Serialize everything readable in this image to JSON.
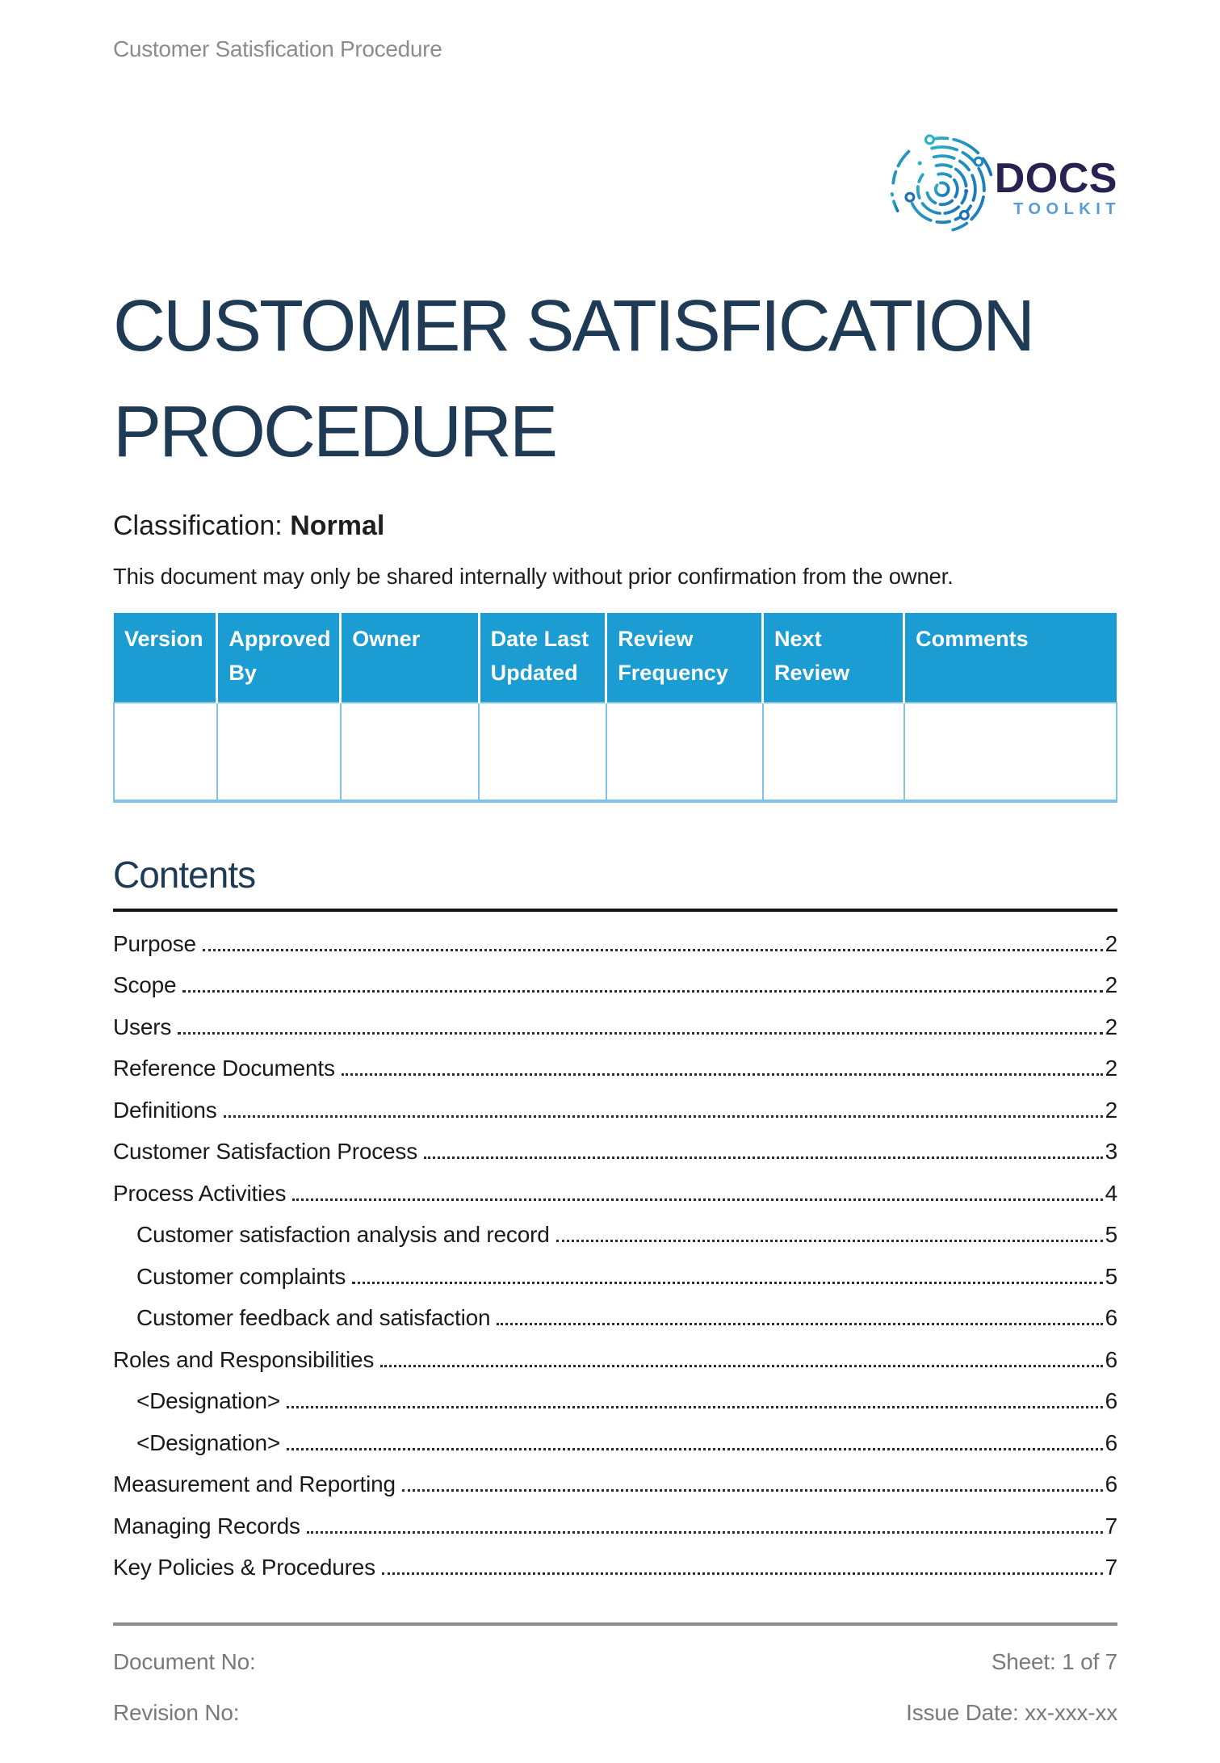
{
  "running_header": {
    "title": "Customer Satisfication Procedure"
  },
  "logo": {
    "brand": "DOCS",
    "sub_brand": "TOOLKIT",
    "colors": {
      "brand_navy": "#262350",
      "toolkit_blue": "#5b9bd5",
      "fingerprint_teal": "#2bb1c5",
      "fingerprint_blue": "#1a6fb8"
    }
  },
  "title": {
    "line1": "CUSTOMER SATISFICATION",
    "line2": "PROCEDURE",
    "color": "#1f3a54"
  },
  "classification": {
    "label": "Classification: ",
    "value": "Normal"
  },
  "notice": "This document may only be shared internally without prior confirmation from the owner.",
  "version_table": {
    "header_color": "#1b9cd3",
    "border_color": "#7ec3e6",
    "columns": [
      "Version",
      "Approved By",
      "Owner",
      "Date Last Updated",
      "Review Frequency",
      "Next Review",
      "Comments"
    ],
    "rows": [
      [
        "",
        "",
        "",
        "",
        "",
        "",
        ""
      ]
    ]
  },
  "contents": {
    "heading": "Contents",
    "entries": [
      {
        "label": "Purpose",
        "page": "2",
        "level": 1
      },
      {
        "label": "Scope",
        "page": "2",
        "level": 1
      },
      {
        "label": "Users",
        "page": "2",
        "level": 1
      },
      {
        "label": "Reference Documents",
        "page": "2",
        "level": 1
      },
      {
        "label": "Definitions",
        "page": "2",
        "level": 1
      },
      {
        "label": "Customer Satisfaction Process",
        "page": "3",
        "level": 1
      },
      {
        "label": "Process Activities",
        "page": "4",
        "level": 1
      },
      {
        "label": "Customer satisfaction analysis and record",
        "page": "5",
        "level": 2
      },
      {
        "label": "Customer complaints",
        "page": "5",
        "level": 2
      },
      {
        "label": "Customer feedback and satisfaction",
        "page": "6",
        "level": 2
      },
      {
        "label": "Roles and Responsibilities",
        "page": "6",
        "level": 1
      },
      {
        "label": "<Designation>",
        "page": "6",
        "level": 2
      },
      {
        "label": "<Designation>",
        "page": "6",
        "level": 2
      },
      {
        "label": "Measurement and Reporting",
        "page": "6",
        "level": 1
      },
      {
        "label": "Managing Records",
        "page": "7",
        "level": 1
      },
      {
        "label": "Key Policies & Procedures",
        "page": "7",
        "level": 1
      }
    ]
  },
  "footer": {
    "document_no": "Document No:",
    "revision_no": "Revision No:",
    "sheet": "Sheet: 1 of 7",
    "issue_date": "Issue Date: xx-xxx-xx"
  }
}
